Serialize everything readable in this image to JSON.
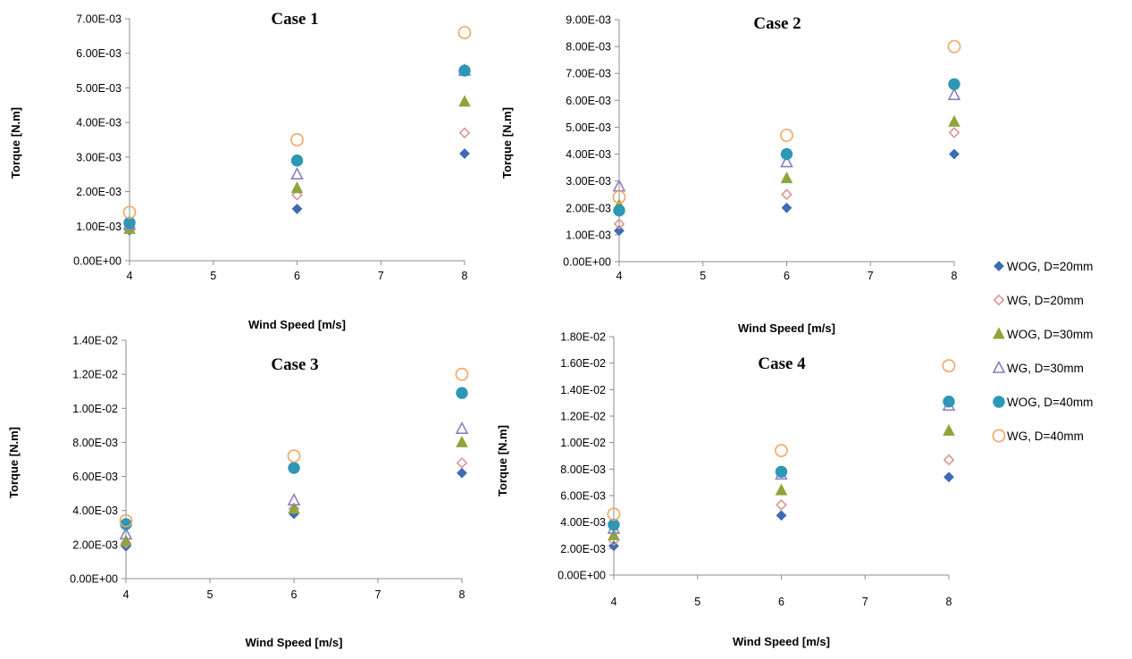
{
  "series_styles": [
    {
      "name": "WOG, D=20mm",
      "marker": "diamond",
      "fill": "#3f6bb3",
      "stroke": "#3f6bb3"
    },
    {
      "name": "WG, D=20mm",
      "marker": "diamond-open",
      "fill": "none",
      "stroke": "#d99694"
    },
    {
      "name": "WOG, D=30mm",
      "marker": "triangle",
      "fill": "#8ea53d",
      "stroke": "#8ea53d"
    },
    {
      "name": "WG, D=30mm",
      "marker": "triangle-open",
      "fill": "none",
      "stroke": "#8e7dbd"
    },
    {
      "name": "WOG, D=40mm",
      "marker": "circle",
      "fill": "#2e97b5",
      "stroke": "#2e97b5"
    },
    {
      "name": "WG, D=40mm",
      "marker": "circle-open",
      "fill": "none",
      "stroke": "#f2a561"
    }
  ],
  "legend": {
    "items": [
      "WOG, D=20mm",
      "WG, D=20mm",
      "WOG, D=30mm",
      "WG, D=30mm",
      "WOG, D=40mm",
      "WG, D=40mm"
    ]
  },
  "chart_data": [
    {
      "type": "scatter",
      "title": "Case 1",
      "xlabel": "Wind Speed [m/s]",
      "ylabel": "Torque [N.m]",
      "xlim": [
        4,
        8
      ],
      "ylim": [
        0,
        0.007
      ],
      "x_ticks": [
        "4",
        "5",
        "6",
        "7",
        "8"
      ],
      "y_ticks": [
        "0.00E+00",
        "1.00E-03",
        "2.00E-03",
        "3.00E-03",
        "4.00E-03",
        "5.00E-03",
        "6.00E-03",
        "7.00E-03"
      ],
      "x": [
        4,
        6,
        8
      ],
      "series": [
        {
          "name": "WOG, D=20mm",
          "values": [
            0.00088,
            0.0015,
            0.0031
          ]
        },
        {
          "name": "WG, D=20mm",
          "values": [
            0.001,
            0.0019,
            0.0037
          ]
        },
        {
          "name": "WOG, D=30mm",
          "values": [
            0.00092,
            0.0021,
            0.0046
          ]
        },
        {
          "name": "WG, D=30mm",
          "values": [
            0.00105,
            0.0025,
            0.0055
          ]
        },
        {
          "name": "WOG, D=40mm",
          "values": [
            0.0011,
            0.0029,
            0.0055
          ]
        },
        {
          "name": "WG, D=40mm",
          "values": [
            0.0014,
            0.0035,
            0.0066
          ]
        }
      ]
    },
    {
      "type": "scatter",
      "title": "Case 2",
      "xlabel": "Wind Speed [m/s]",
      "ylabel": "Torque [N.m]",
      "xlim": [
        4,
        8
      ],
      "ylim": [
        0,
        0.009
      ],
      "x_ticks": [
        "4",
        "5",
        "6",
        "7",
        "8"
      ],
      "y_ticks": [
        "0.00E+00",
        "1.00E-03",
        "2.00E-03",
        "3.00E-03",
        "4.00E-03",
        "5.00E-03",
        "6.00E-03",
        "7.00E-03",
        "8.00E-03",
        "9.00E-03"
      ],
      "x": [
        4,
        6,
        8
      ],
      "series": [
        {
          "name": "WOG, D=20mm",
          "values": [
            0.00115,
            0.002,
            0.004
          ]
        },
        {
          "name": "WG, D=20mm",
          "values": [
            0.0014,
            0.0025,
            0.0048
          ]
        },
        {
          "name": "WOG, D=30mm",
          "values": [
            0.0021,
            0.0031,
            0.0052
          ]
        },
        {
          "name": "WG, D=30mm",
          "values": [
            0.0028,
            0.0037,
            0.0062
          ]
        },
        {
          "name": "WOG, D=40mm",
          "values": [
            0.0019,
            0.004,
            0.0066
          ]
        },
        {
          "name": "WG, D=40mm",
          "values": [
            0.0024,
            0.0047,
            0.008
          ]
        }
      ]
    },
    {
      "type": "scatter",
      "title": "Case 3",
      "xlabel": "Wind Speed [m/s]",
      "ylabel": "Torque [N.m]",
      "xlim": [
        4,
        8
      ],
      "ylim": [
        0,
        0.014
      ],
      "x_ticks": [
        "4",
        "5",
        "6",
        "7",
        "8"
      ],
      "y_ticks": [
        "0.00E+00",
        "2.00E-03",
        "4.00E-03",
        "6.00E-03",
        "8.00E-03",
        "1.00E-02",
        "1.20E-02",
        "1.40E-02"
      ],
      "x": [
        4,
        6,
        8
      ],
      "series": [
        {
          "name": "WOG, D=20mm",
          "values": [
            0.0019,
            0.0038,
            0.0062
          ]
        },
        {
          "name": "WG, D=20mm",
          "values": [
            0.0021,
            0.0041,
            0.0068
          ]
        },
        {
          "name": "WOG, D=30mm",
          "values": [
            0.0022,
            0.0041,
            0.008
          ]
        },
        {
          "name": "WG, D=30mm",
          "values": [
            0.0026,
            0.0046,
            0.0088
          ]
        },
        {
          "name": "WOG, D=40mm",
          "values": [
            0.0032,
            0.0065,
            0.0109
          ]
        },
        {
          "name": "WG, D=40mm",
          "values": [
            0.0034,
            0.0072,
            0.012
          ]
        }
      ]
    },
    {
      "type": "scatter",
      "title": "Case 4",
      "xlabel": "Wind Speed [m/s]",
      "ylabel": "Torque [N.m]",
      "xlim": [
        4,
        8
      ],
      "ylim": [
        0,
        0.018
      ],
      "x_ticks": [
        "4",
        "5",
        "6",
        "7",
        "8"
      ],
      "y_ticks": [
        "0.00E+00",
        "2.00E-03",
        "4.00E-03",
        "6.00E-03",
        "8.00E-03",
        "1.00E-02",
        "1.20E-02",
        "1.40E-02",
        "1.60E-02",
        "1.80E-02"
      ],
      "x": [
        4,
        6,
        8
      ],
      "series": [
        {
          "name": "WOG, D=20mm",
          "values": [
            0.0022,
            0.0045,
            0.0074
          ]
        },
        {
          "name": "WG, D=20mm",
          "values": [
            0.0026,
            0.0053,
            0.0087
          ]
        },
        {
          "name": "WOG, D=30mm",
          "values": [
            0.003,
            0.0064,
            0.0109
          ]
        },
        {
          "name": "WG, D=30mm",
          "values": [
            0.0035,
            0.0076,
            0.0128
          ]
        },
        {
          "name": "WOG, D=40mm",
          "values": [
            0.0038,
            0.0078,
            0.0131
          ]
        },
        {
          "name": "WG, D=40mm",
          "values": [
            0.0046,
            0.0094,
            0.0158
          ]
        }
      ]
    }
  ]
}
